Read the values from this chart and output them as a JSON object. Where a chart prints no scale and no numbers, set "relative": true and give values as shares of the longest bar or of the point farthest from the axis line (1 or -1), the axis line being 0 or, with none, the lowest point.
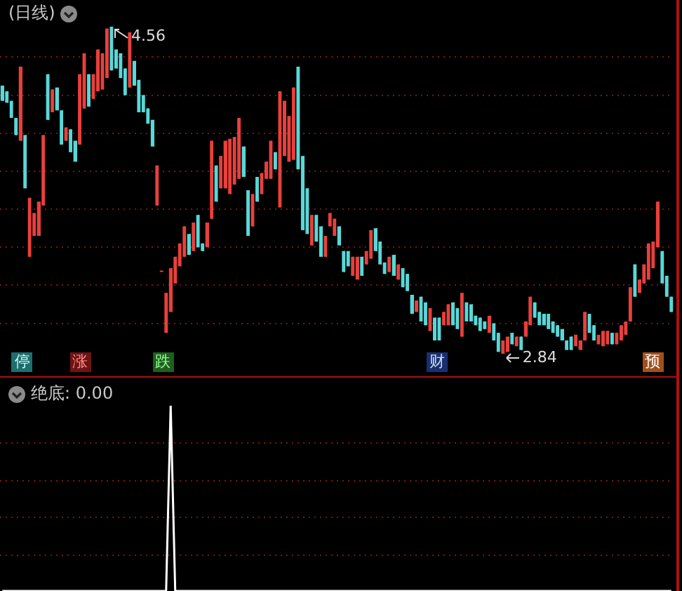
{
  "chart_data": [
    {
      "type": "candlestick",
      "title": "(日线)",
      "categories": [
        null,
        null,
        null,
        null,
        null,
        null,
        null,
        null,
        null,
        null,
        null,
        null,
        null,
        null,
        null,
        null,
        null,
        null,
        null,
        null,
        null,
        null,
        null,
        null,
        null,
        null,
        null,
        null,
        null,
        null,
        null,
        null,
        null,
        null,
        null,
        null,
        null,
        null,
        null,
        null,
        null,
        null,
        null,
        null,
        null,
        null,
        null,
        null,
        null,
        null,
        null,
        null,
        null,
        null,
        null,
        null,
        null,
        null,
        null,
        null,
        null,
        null,
        null,
        null,
        null,
        null,
        null,
        null,
        null,
        null,
        null,
        null,
        null,
        null,
        null,
        null,
        null,
        null,
        null,
        null,
        null,
        null,
        null,
        null,
        null,
        null,
        null,
        null,
        null,
        null,
        null,
        null,
        null,
        null,
        null,
        null,
        null,
        null,
        null,
        null,
        null,
        null,
        null,
        null,
        null,
        null,
        null,
        null,
        null,
        null,
        null,
        null,
        null,
        null,
        null,
        null,
        null,
        null,
        null,
        null,
        null,
        null,
        null,
        null,
        null,
        null,
        null,
        null,
        null,
        null,
        null,
        null,
        null,
        null,
        null,
        null,
        null,
        null,
        null,
        null,
        null,
        null,
        null,
        null,
        null,
        null,
        null,
        null
      ],
      "ohlc": [
        [
          4.25,
          4.25,
          4.17,
          4.17
        ],
        [
          4.22,
          4.22,
          4.16,
          4.16
        ],
        [
          4.17,
          4.17,
          4.08,
          4.08
        ],
        [
          4.08,
          4.08,
          3.99,
          3.99
        ],
        [
          3.96,
          4.35,
          3.96,
          4.35
        ],
        [
          3.99,
          3.99,
          3.71,
          3.71
        ],
        [
          3.35,
          3.66,
          3.35,
          3.66
        ],
        [
          3.46,
          3.58,
          3.46,
          3.58
        ],
        [
          3.46,
          3.64,
          3.46,
          3.64
        ],
        [
          3.62,
          3.99,
          3.62,
          3.99
        ],
        [
          4.31,
          4.31,
          4.07,
          4.07
        ],
        [
          4.11,
          4.23,
          4.11,
          4.23
        ],
        [
          4.24,
          4.24,
          4.12,
          4.12
        ],
        [
          4.12,
          4.12,
          3.94,
          3.94
        ],
        [
          3.96,
          4.03,
          3.96,
          4.03
        ],
        [
          4.02,
          4.02,
          3.9,
          3.9
        ],
        [
          3.96,
          3.96,
          3.85,
          3.85
        ],
        [
          3.94,
          4.31,
          3.94,
          4.31
        ],
        [
          4.13,
          4.42,
          4.13,
          4.42
        ],
        [
          4.31,
          4.31,
          4.14,
          4.14
        ],
        [
          4.18,
          4.31,
          4.18,
          4.31
        ],
        [
          4.22,
          4.44,
          4.22,
          4.44
        ],
        [
          4.23,
          4.42,
          4.23,
          4.42
        ],
        [
          4.29,
          4.55,
          4.29,
          4.55
        ],
        [
          4.56,
          4.56,
          4.33,
          4.33
        ],
        [
          4.44,
          4.44,
          4.34,
          4.34
        ],
        [
          4.42,
          4.42,
          4.29,
          4.29
        ],
        [
          4.34,
          4.34,
          4.2,
          4.2
        ],
        [
          4.24,
          4.53,
          4.24,
          4.53
        ],
        [
          4.38,
          4.38,
          4.25,
          4.25
        ],
        [
          4.28,
          4.28,
          4.11,
          4.11
        ],
        [
          4.2,
          4.2,
          4.11,
          4.11
        ],
        [
          4.13,
          4.13,
          4.05,
          4.05
        ],
        [
          4.07,
          4.07,
          3.93,
          3.93
        ],
        [
          3.62,
          3.83,
          3.62,
          3.83
        ],
        [
          3.27,
          3.27,
          3.27,
          3.27
        ],
        [
          2.95,
          3.16,
          2.95,
          3.16
        ],
        [
          3.06,
          3.29,
          3.06,
          3.29
        ],
        [
          3.21,
          3.35,
          3.21,
          3.35
        ],
        [
          3.3,
          3.42,
          3.3,
          3.42
        ],
        [
          3.35,
          3.51,
          3.35,
          3.51
        ],
        [
          3.47,
          3.47,
          3.36,
          3.36
        ],
        [
          3.38,
          3.53,
          3.38,
          3.53
        ],
        [
          3.57,
          3.57,
          3.4,
          3.4
        ],
        [
          3.42,
          3.42,
          3.38,
          3.38
        ],
        [
          3.4,
          3.53,
          3.4,
          3.53
        ],
        [
          3.55,
          3.96,
          3.55,
          3.96
        ],
        [
          3.83,
          3.83,
          3.64,
          3.64
        ],
        [
          3.71,
          3.88,
          3.71,
          3.88
        ],
        [
          3.71,
          3.96,
          3.71,
          3.96
        ],
        [
          3.68,
          3.97,
          3.68,
          3.97
        ],
        [
          3.73,
          3.98,
          3.73,
          3.98
        ],
        [
          3.76,
          4.08,
          3.76,
          4.08
        ],
        [
          3.93,
          3.93,
          3.77,
          3.77
        ],
        [
          3.7,
          3.7,
          3.46,
          3.46
        ],
        [
          3.51,
          3.68,
          3.51,
          3.68
        ],
        [
          3.77,
          3.77,
          3.64,
          3.64
        ],
        [
          3.68,
          3.79,
          3.68,
          3.79
        ],
        [
          3.76,
          3.85,
          3.76,
          3.85
        ],
        [
          3.76,
          3.96,
          3.76,
          3.96
        ],
        [
          3.9,
          3.9,
          3.81,
          3.81
        ],
        [
          3.61,
          4.22,
          3.61,
          4.22
        ],
        [
          3.88,
          4.17,
          3.88,
          4.17
        ],
        [
          3.85,
          4.09,
          3.85,
          4.09
        ],
        [
          3.86,
          4.24,
          3.86,
          4.24
        ],
        [
          4.35,
          4.35,
          3.81,
          3.81
        ],
        [
          3.88,
          3.88,
          3.49,
          3.49
        ],
        [
          3.71,
          3.71,
          3.47,
          3.47
        ],
        [
          3.41,
          3.57,
          3.41,
          3.57
        ],
        [
          3.57,
          3.57,
          3.43,
          3.43
        ],
        [
          3.51,
          3.51,
          3.35,
          3.35
        ],
        [
          3.35,
          3.46,
          3.35,
          3.46
        ],
        [
          3.51,
          3.58,
          3.51,
          3.58
        ],
        [
          3.46,
          3.55,
          3.46,
          3.55
        ],
        [
          3.51,
          3.51,
          3.41,
          3.41
        ],
        [
          3.38,
          3.38,
          3.27,
          3.27
        ],
        [
          3.38,
          3.38,
          3.3,
          3.3
        ],
        [
          3.25,
          3.35,
          3.25,
          3.35
        ],
        [
          3.23,
          3.35,
          3.23,
          3.35
        ],
        [
          3.35,
          3.35,
          3.25,
          3.25
        ],
        [
          3.31,
          3.38,
          3.31,
          3.38
        ],
        [
          3.34,
          3.49,
          3.34,
          3.49
        ],
        [
          3.5,
          3.5,
          3.38,
          3.38
        ],
        [
          3.43,
          3.43,
          3.31,
          3.31
        ],
        [
          3.32,
          3.32,
          3.26,
          3.26
        ],
        [
          3.27,
          3.35,
          3.27,
          3.35
        ],
        [
          3.36,
          3.36,
          3.25,
          3.25
        ],
        [
          3.23,
          3.31,
          3.23,
          3.31
        ],
        [
          3.29,
          3.29,
          3.19,
          3.19
        ],
        [
          3.26,
          3.26,
          3.17,
          3.17
        ],
        [
          3.15,
          3.15,
          3.05,
          3.05
        ],
        [
          3.06,
          3.12,
          3.06,
          3.12
        ],
        [
          3.14,
          3.14,
          3.01,
          3.01
        ],
        [
          3.11,
          3.11,
          2.99,
          2.99
        ],
        [
          2.96,
          3.08,
          2.96,
          3.08
        ],
        [
          3.03,
          3.03,
          2.91,
          2.91
        ],
        [
          3.03,
          3.03,
          2.91,
          2.91
        ],
        [
          2.99,
          3.06,
          2.99,
          3.06
        ],
        [
          2.99,
          3.1,
          2.99,
          3.1
        ],
        [
          3.11,
          3.11,
          2.99,
          2.99
        ],
        [
          3.08,
          3.08,
          2.97,
          2.97
        ],
        [
          2.93,
          3.16,
          2.93,
          3.16
        ],
        [
          3.11,
          3.11,
          3.01,
          3.01
        ],
        [
          3.1,
          3.1,
          3.01,
          3.01
        ],
        [
          3.04,
          3.04,
          2.99,
          2.99
        ],
        [
          3.03,
          3.03,
          2.96,
          2.96
        ],
        [
          3.01,
          3.01,
          2.97,
          2.97
        ],
        [
          2.95,
          3.04,
          2.95,
          3.04
        ],
        [
          3.0,
          3.0,
          2.91,
          2.91
        ],
        [
          2.95,
          2.95,
          2.85,
          2.85
        ],
        [
          2.84,
          2.91,
          2.84,
          2.91
        ],
        [
          2.85,
          2.93,
          2.85,
          2.93
        ],
        [
          2.95,
          2.95,
          2.89,
          2.89
        ],
        [
          2.88,
          2.93,
          2.88,
          2.93
        ],
        [
          2.93,
          2.93,
          2.86,
          2.86
        ],
        [
          2.93,
          3.01,
          2.93,
          3.01
        ],
        [
          2.99,
          3.14,
          2.99,
          3.14
        ],
        [
          3.11,
          3.11,
          3.03,
          3.03
        ],
        [
          3.06,
          3.06,
          2.99,
          2.99
        ],
        [
          3.05,
          3.05,
          2.99,
          2.99
        ],
        [
          3.05,
          3.05,
          2.97,
          2.97
        ],
        [
          3.01,
          3.01,
          2.95,
          2.95
        ],
        [
          2.99,
          2.99,
          2.93,
          2.93
        ],
        [
          2.97,
          2.97,
          2.91,
          2.91
        ],
        [
          2.91,
          2.91,
          2.86,
          2.86
        ],
        [
          2.93,
          2.93,
          2.86,
          2.86
        ],
        [
          2.88,
          2.94,
          2.88,
          2.94
        ],
        [
          2.86,
          2.91,
          2.86,
          2.91
        ],
        [
          2.91,
          3.06,
          2.91,
          3.06
        ],
        [
          3.05,
          3.05,
          2.95,
          2.95
        ],
        [
          2.99,
          2.99,
          2.91,
          2.91
        ],
        [
          2.89,
          2.94,
          2.89,
          2.94
        ],
        [
          2.88,
          2.96,
          2.88,
          2.96
        ],
        [
          2.89,
          2.96,
          2.89,
          2.96
        ],
        [
          2.95,
          2.95,
          2.89,
          2.89
        ],
        [
          2.89,
          2.95,
          2.89,
          2.95
        ],
        [
          2.91,
          2.99,
          2.91,
          2.99
        ],
        [
          2.94,
          3.01,
          2.94,
          3.01
        ],
        [
          3.01,
          3.19,
          3.01,
          3.19
        ],
        [
          3.31,
          3.31,
          3.14,
          3.14
        ],
        [
          3.16,
          3.23,
          3.16,
          3.23
        ],
        [
          3.21,
          3.31,
          3.21,
          3.31
        ],
        [
          3.23,
          3.42,
          3.23,
          3.42
        ],
        [
          3.29,
          3.43,
          3.29,
          3.43
        ],
        [
          3.4,
          3.64,
          3.4,
          3.64
        ],
        [
          3.38,
          3.38,
          3.21,
          3.21
        ],
        [
          3.25,
          3.25,
          3.14,
          3.14
        ],
        [
          3.14,
          3.14,
          3.06,
          3.06
        ]
      ],
      "yticks": [
        {
          "value": 3.0,
          "label": null
        },
        {
          "value": 3.2,
          "label": null
        },
        {
          "value": 3.4,
          "label": null
        },
        {
          "value": 3.6,
          "label": null
        },
        {
          "value": 3.8,
          "label": null
        },
        {
          "value": 4.0,
          "label": null
        },
        {
          "value": 4.2,
          "label": null
        },
        {
          "value": 4.4,
          "label": null
        }
      ],
      "grid": "y",
      "tick_labels": false,
      "annotations": [
        "4.56",
        "2.84",
        "停",
        "涨",
        "跌",
        "财",
        "预"
      ]
    },
    {
      "type": "line",
      "title": "绝底: 0.00",
      "color": "#ffffff",
      "marker": "none",
      "relative": true,
      "tick_labels": false,
      "ref_lines": [
        {
          "axis": "y",
          "value": 0.2,
          "color": "#7a1414",
          "line_style": "dotted"
        },
        {
          "axis": "y",
          "value": 0.4,
          "color": "#7a1414",
          "line_style": "dotted"
        },
        {
          "axis": "y",
          "value": 0.6,
          "color": "#7a1414",
          "line_style": "dotted"
        },
        {
          "axis": "y",
          "value": 0.8,
          "color": "#7a1414",
          "line_style": "dotted"
        }
      ],
      "categories": [
        null,
        null,
        null,
        null,
        null,
        null,
        null,
        null,
        null,
        null,
        null,
        null,
        null,
        null,
        null,
        null,
        null,
        null,
        null,
        null,
        null,
        null,
        null,
        null,
        null,
        null,
        null,
        null,
        null,
        null,
        null,
        null,
        null,
        null,
        null,
        null,
        null,
        null,
        null,
        null,
        null,
        null,
        null,
        null,
        null,
        null,
        null,
        null,
        null,
        null,
        null,
        null,
        null,
        null,
        null,
        null,
        null,
        null,
        null,
        null,
        null,
        null,
        null,
        null,
        null,
        null,
        null,
        null,
        null,
        null,
        null,
        null,
        null,
        null,
        null,
        null,
        null,
        null,
        null,
        null,
        null,
        null,
        null,
        null,
        null,
        null,
        null,
        null,
        null,
        null,
        null,
        null,
        null,
        null,
        null,
        null,
        null,
        null,
        null,
        null,
        null,
        null,
        null,
        null,
        null,
        null,
        null,
        null,
        null,
        null,
        null,
        null,
        null,
        null,
        null,
        null,
        null,
        null,
        null,
        null,
        null,
        null,
        null,
        null,
        null,
        null,
        null,
        null,
        null,
        null,
        null,
        null,
        null,
        null,
        null,
        null,
        null,
        null,
        null,
        null,
        null,
        null,
        null,
        null,
        null,
        null,
        null,
        null
      ],
      "values": [
        0,
        0,
        0,
        0,
        0,
        0,
        0,
        0,
        0,
        0,
        0,
        0,
        0,
        0,
        0,
        0,
        0,
        0,
        0,
        0,
        0,
        0,
        0,
        0,
        0,
        0,
        0,
        0,
        0,
        0,
        0,
        0,
        0,
        0,
        0,
        0,
        0,
        1,
        0,
        0,
        0,
        0,
        0,
        0,
        0,
        0,
        0,
        0,
        0,
        0,
        0,
        0,
        0,
        0,
        0,
        0,
        0,
        0,
        0,
        0,
        0,
        0,
        0,
        0,
        0,
        0,
        0,
        0,
        0,
        0,
        0,
        0,
        0,
        0,
        0,
        0,
        0,
        0,
        0,
        0,
        0,
        0,
        0,
        0,
        0,
        0,
        0,
        0,
        0,
        0,
        0,
        0,
        0,
        0,
        0,
        0,
        0,
        0,
        0,
        0,
        0,
        0,
        0,
        0,
        0,
        0,
        0,
        0,
        0,
        0,
        0,
        0,
        0,
        0,
        0,
        0,
        0,
        0,
        0,
        0,
        0,
        0,
        0,
        0,
        0,
        0,
        0,
        0,
        0,
        0,
        0,
        0,
        0,
        0,
        0,
        0,
        0,
        0,
        0,
        0,
        0,
        0,
        0,
        0,
        0,
        0,
        0,
        0
      ]
    }
  ]
}
